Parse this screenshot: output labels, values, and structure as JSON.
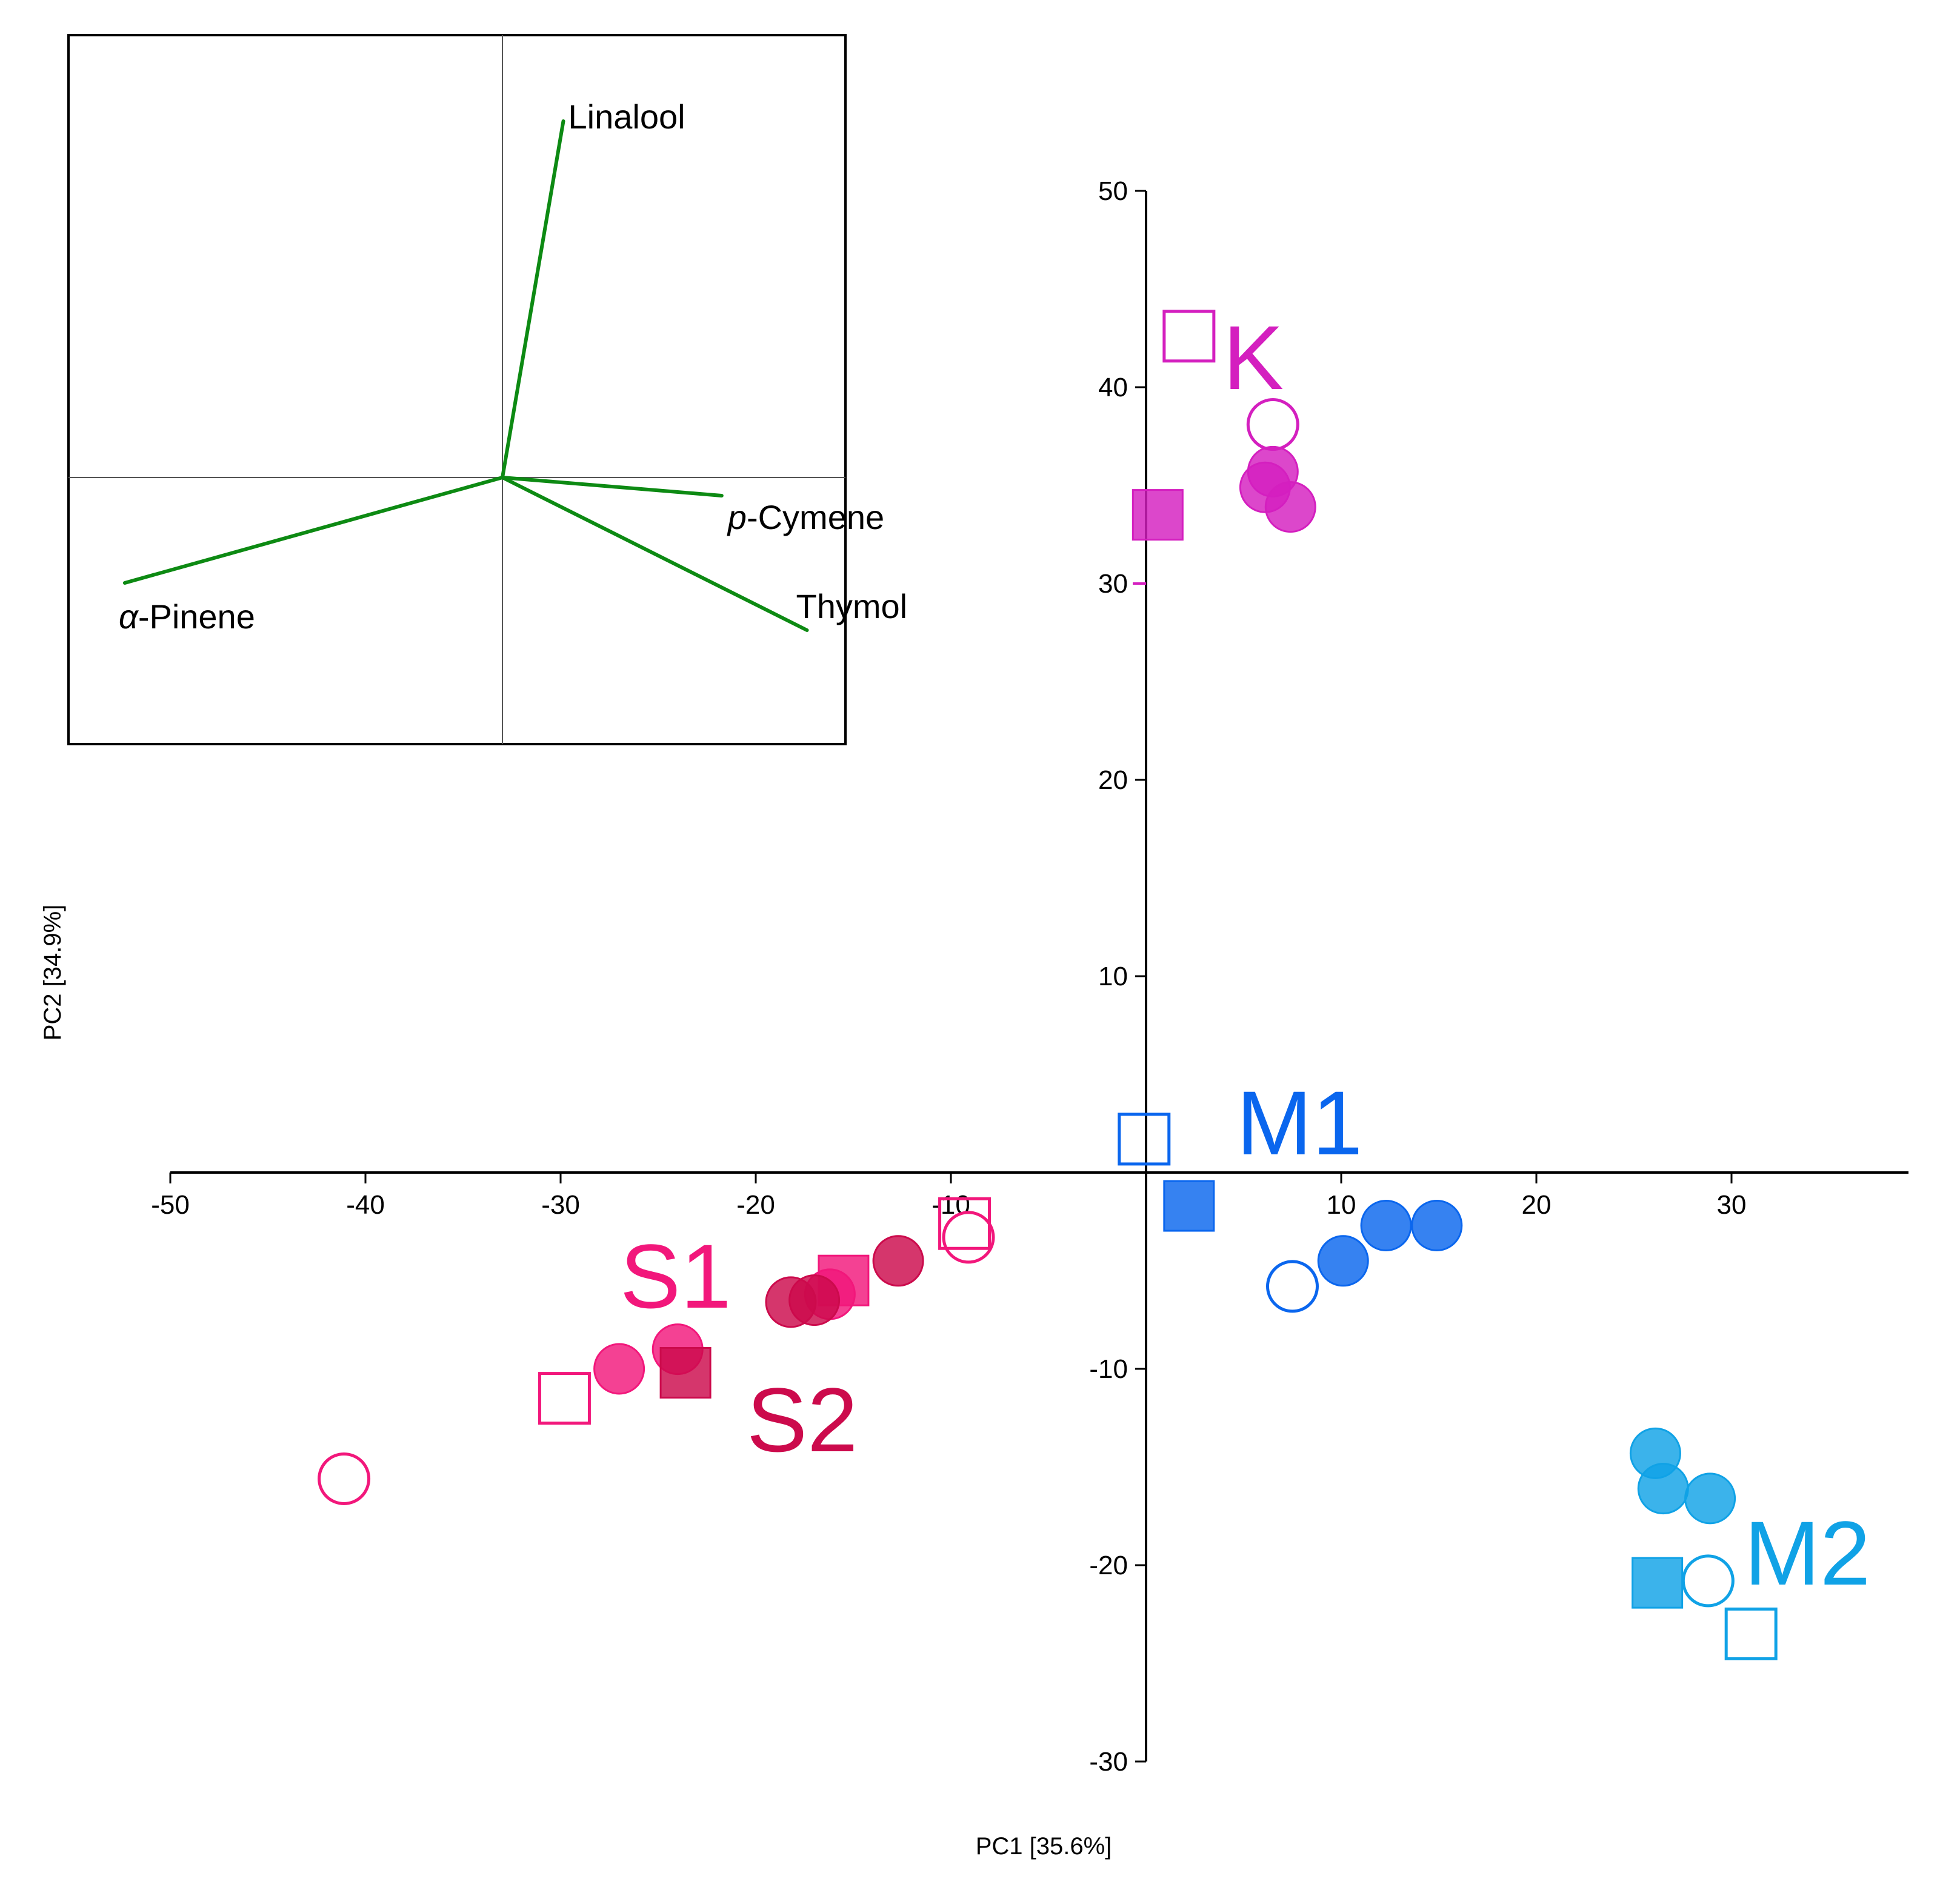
{
  "chart_data": {
    "type": "scatter",
    "title": "",
    "xlabel": "PC1 [35.6%]",
    "ylabel": "PC2 [34.9%]",
    "xlim": [
      -50,
      40
    ],
    "ylim": [
      -30,
      50
    ],
    "x_ticks": [
      "-50",
      "-40",
      "-30",
      "-20",
      "-10",
      "10",
      "20",
      "30"
    ],
    "x_tick_values": [
      -50,
      -40,
      -30,
      -20,
      -10,
      10,
      20,
      30
    ],
    "y_ticks": [
      "50",
      "40",
      "30",
      "20",
      "10",
      "-10",
      "-20",
      "-30"
    ],
    "y_tick_values": [
      50,
      40,
      30,
      20,
      10,
      -10,
      -20,
      -30
    ],
    "grid": false,
    "legend": "none",
    "colors": {
      "K": "#d41fbf",
      "S1": "#f2177b",
      "S2": "#cc0a4c",
      "M1": "#0a66ee",
      "M2": "#10a2e6"
    },
    "series": [
      {
        "name": "K",
        "label": "K",
        "color": "#d41fbf",
        "points": [
          {
            "x": 2.2,
            "y": 42.6,
            "marker": "square",
            "fill": "open"
          },
          {
            "x": 6.5,
            "y": 38.1,
            "marker": "circle",
            "fill": "open"
          },
          {
            "x": 6.5,
            "y": 35.7,
            "marker": "circle",
            "fill": "filled"
          },
          {
            "x": 6.1,
            "y": 34.9,
            "marker": "circle",
            "fill": "filled"
          },
          {
            "x": 7.4,
            "y": 33.9,
            "marker": "circle",
            "fill": "filled"
          },
          {
            "x": 0.6,
            "y": 33.5,
            "marker": "square",
            "fill": "filled"
          }
        ]
      },
      {
        "name": "S1",
        "label": "S1",
        "color": "#f2177b",
        "points": [
          {
            "x": -9.3,
            "y": -2.6,
            "marker": "square",
            "fill": "open"
          },
          {
            "x": -9.1,
            "y": -3.3,
            "marker": "circle",
            "fill": "open"
          },
          {
            "x": -15.5,
            "y": -5.5,
            "marker": "square",
            "fill": "filled"
          },
          {
            "x": -16.2,
            "y": -6.2,
            "marker": "circle",
            "fill": "filled"
          },
          {
            "x": -24.0,
            "y": -9.0,
            "marker": "circle",
            "fill": "filled"
          },
          {
            "x": -27.0,
            "y": -10.0,
            "marker": "circle",
            "fill": "filled"
          },
          {
            "x": -29.8,
            "y": -11.5,
            "marker": "square",
            "fill": "open"
          },
          {
            "x": -41.1,
            "y": -15.6,
            "marker": "circle",
            "fill": "open"
          }
        ]
      },
      {
        "name": "S2",
        "label": "S2",
        "color": "#cc0a4c",
        "points": [
          {
            "x": -12.7,
            "y": -4.5,
            "marker": "circle",
            "fill": "filled"
          },
          {
            "x": -17.0,
            "y": -6.5,
            "marker": "circle",
            "fill": "filled"
          },
          {
            "x": -18.2,
            "y": -6.6,
            "marker": "circle",
            "fill": "filled"
          },
          {
            "x": -23.6,
            "y": -10.2,
            "marker": "square",
            "fill": "filled"
          }
        ]
      },
      {
        "name": "M1",
        "label": "M1",
        "color": "#0a66ee",
        "points": [
          {
            "x": -0.1,
            "y": 1.7,
            "marker": "square",
            "fill": "open"
          },
          {
            "x": 2.2,
            "y": -1.7,
            "marker": "square",
            "fill": "filled"
          },
          {
            "x": 12.3,
            "y": -2.7,
            "marker": "circle",
            "fill": "filled"
          },
          {
            "x": 14.9,
            "y": -2.7,
            "marker": "circle",
            "fill": "filled"
          },
          {
            "x": 10.1,
            "y": -4.5,
            "marker": "circle",
            "fill": "filled"
          },
          {
            "x": 7.5,
            "y": -5.8,
            "marker": "circle",
            "fill": "open"
          }
        ]
      },
      {
        "name": "M2",
        "label": "M2",
        "color": "#10a2e6",
        "points": [
          {
            "x": 26.1,
            "y": -14.3,
            "marker": "circle",
            "fill": "filled"
          },
          {
            "x": 26.5,
            "y": -16.1,
            "marker": "circle",
            "fill": "filled"
          },
          {
            "x": 28.9,
            "y": -16.6,
            "marker": "circle",
            "fill": "filled"
          },
          {
            "x": 28.8,
            "y": -20.8,
            "marker": "circle",
            "fill": "open"
          },
          {
            "x": 26.2,
            "y": -20.9,
            "marker": "square",
            "fill": "filled"
          },
          {
            "x": 31.0,
            "y": -23.5,
            "marker": "square",
            "fill": "open"
          }
        ]
      }
    ],
    "inset": {
      "type": "loading-plot",
      "color": "#0d8a13",
      "xlim": [
        -1,
        1
      ],
      "ylim": [
        -1,
        1
      ],
      "loadings": [
        {
          "name": "Linalool",
          "label": "Linalool",
          "x": 0.1,
          "y": 0.98
        },
        {
          "name": "p-Cymene",
          "label_italic": "p",
          "label": "-Cymene",
          "x": 0.36,
          "y": -0.05
        },
        {
          "name": "Thymol",
          "label": "Thymol",
          "x": 0.5,
          "y": -0.42
        },
        {
          "name": "alpha-Pinene",
          "label_italic": "α",
          "label": "-Pinene",
          "x": -0.62,
          "y": -0.29
        }
      ]
    }
  }
}
